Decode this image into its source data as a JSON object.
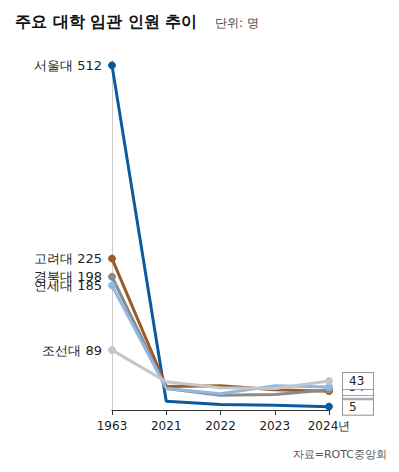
{
  "chart_data": {
    "type": "line",
    "title": "주요 대학 임관 인원 추이",
    "subtitle": "단위: 명",
    "annotations": [
      "자료=ROTC중앙회"
    ],
    "categories": [
      "1963",
      "2021",
      "2022",
      "2023",
      "2024년"
    ],
    "series": [
      {
        "name": "서울대",
        "color": "#0b5a9e",
        "marker": "circle",
        "values": [
          512,
          13,
          8,
          7,
          5
        ]
      },
      {
        "name": "고려대",
        "color": "#9a5b2c",
        "marker": "circle",
        "values": [
          225,
          35,
          36,
          30,
          28
        ]
      },
      {
        "name": "경북대",
        "color": "#8a8a8a",
        "marker": "circle",
        "values": [
          198,
          32,
          22,
          23,
          30
        ]
      },
      {
        "name": "연세대",
        "color": "#8fb9e2",
        "marker": "circle",
        "values": [
          185,
          32,
          24,
          36,
          34
        ]
      },
      {
        "name": "조선대",
        "color": "#c6c6c6",
        "marker": "circle",
        "values": [
          89,
          42,
          33,
          32,
          43
        ]
      }
    ],
    "ylim": [
      0,
      520
    ],
    "yticks": [],
    "tick_labels": "x",
    "data_labels": true,
    "grid": false
  }
}
